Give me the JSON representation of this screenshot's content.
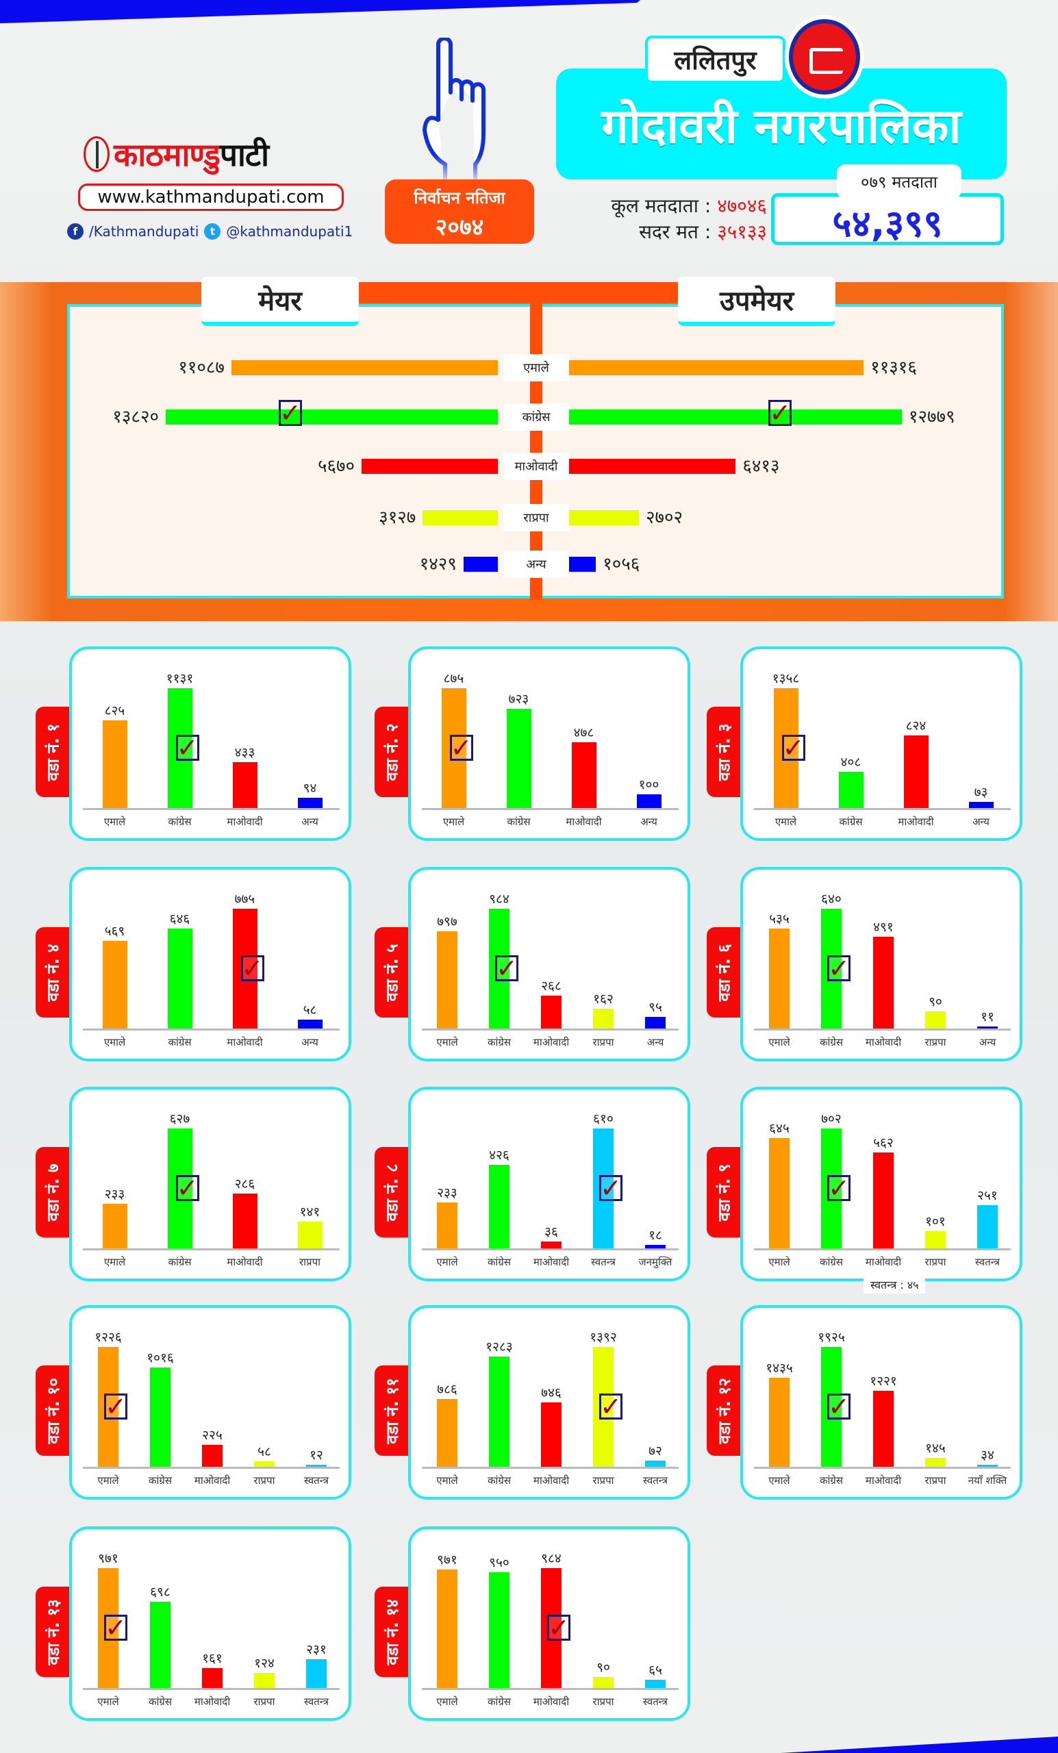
{
  "header": {
    "brand_part1": "काठमाण्डु",
    "brand_part2": "पाटी",
    "website": "www.kathmandupati.com",
    "facebook": "/Kathmandupati",
    "twitter": "@kathmandupati1",
    "result_line1": "निर्वाचन नतिजा",
    "result_line2": "२०७४",
    "district": "ललितपुर",
    "municipality": "गोदावरी नगरपालिका",
    "total_voters_label": "कूल मतदाता :",
    "total_voters": "४७०४६",
    "valid_votes_label": "सदर मत :",
    "valid_votes": "३५१३३",
    "voters_079_label": "०७९ मतदाता",
    "voters_079": "५४,३९९"
  },
  "colors": {
    "एमाले": "#ff9900",
    "कांग्रेस": "#00ff00",
    "माओवादी": "#ff0000",
    "राप्रपा": "#e8ff00",
    "अन्य": "#0000ff",
    "स्वतन्त्र": "#00ccff",
    "जनमुक्ति": "#0000ff",
    "नयाँ शक्ति": "#00ccff",
    "accent": "#00f6ff",
    "band": "#ff4e0a"
  },
  "chart_data": [
    {
      "type": "bar",
      "orientation": "horizontal",
      "title": "मेयर / उपमेयर",
      "categories": [
        "एमाले",
        "कांग्रेस",
        "माओवादी",
        "राप्रपा",
        "अन्य"
      ],
      "series": [
        {
          "name": "मेयर",
          "values": [
            11087,
            13820,
            5670,
            3127,
            1429
          ],
          "labels": [
            "११०८७",
            "१३८२०",
            "५६७०",
            "३१२७",
            "१४२९"
          ],
          "winner": "कांग्रेस"
        },
        {
          "name": "उपमेयर",
          "values": [
            11316,
            12779,
            6413,
            2702,
            1056
          ],
          "labels": [
            "११३१६",
            "१२७७९",
            "६४१३",
            "२७०२",
            "१०५६"
          ],
          "winner": "कांग्रेस"
        }
      ]
    },
    {
      "type": "bar",
      "title": "वडा नं. १",
      "categories": [
        "एमाले",
        "कांग्रेस",
        "माओवादी",
        "अन्य"
      ],
      "values": [
        825,
        1131,
        433,
        94
      ],
      "labels": [
        "८२५",
        "११३१",
        "४३३",
        "९४"
      ],
      "winner": "कांग्रेस"
    },
    {
      "type": "bar",
      "title": "वडा नं. २",
      "categories": [
        "एमाले",
        "कांग्रेस",
        "माओवादी",
        "अन्य"
      ],
      "values": [
        875,
        723,
        478,
        100
      ],
      "labels": [
        "८७५",
        "७२३",
        "४७८",
        "१००"
      ],
      "winner": "एमाले"
    },
    {
      "type": "bar",
      "title": "वडा नं. ३",
      "categories": [
        "एमाले",
        "कांग्रेस",
        "माओवादी",
        "अन्य"
      ],
      "values": [
        1358,
        408,
        824,
        73
      ],
      "labels": [
        "१३५८",
        "४०८",
        "८२४",
        "७३"
      ],
      "winner": "एमाले"
    },
    {
      "type": "bar",
      "title": "वडा नं. ४",
      "categories": [
        "एमाले",
        "कांग्रेस",
        "माओवादी",
        "अन्य"
      ],
      "values": [
        569,
        646,
        775,
        58
      ],
      "labels": [
        "५६९",
        "६४६",
        "७७५",
        "५८"
      ],
      "winner": "माओवादी"
    },
    {
      "type": "bar",
      "title": "वडा नं. ५",
      "categories": [
        "एमाले",
        "कांग्रेस",
        "माओवादी",
        "राप्रपा",
        "अन्य"
      ],
      "values": [
        797,
        984,
        268,
        162,
        95
      ],
      "labels": [
        "७९७",
        "९८४",
        "२६८",
        "१६२",
        "९५"
      ],
      "winner": "कांग्रेस"
    },
    {
      "type": "bar",
      "title": "वडा नं. ६",
      "categories": [
        "एमाले",
        "कांग्रेस",
        "माओवादी",
        "राप्रपा",
        "अन्य"
      ],
      "values": [
        535,
        640,
        491,
        90,
        11
      ],
      "labels": [
        "५३५",
        "६४०",
        "४९१",
        "९०",
        "११"
      ],
      "winner": "कांग्रेस"
    },
    {
      "type": "bar",
      "title": "वडा नं. ७",
      "categories": [
        "एमाले",
        "कांग्रेस",
        "माओवादी",
        "राप्रपा"
      ],
      "values": [
        233,
        627,
        286,
        141
      ],
      "labels": [
        "२३३",
        "६२७",
        "२८६",
        "१४१"
      ],
      "winner": "कांग्रेस"
    },
    {
      "type": "bar",
      "title": "वडा नं. ८",
      "categories": [
        "एमाले",
        "कांग्रेस",
        "माओवादी",
        "स्वतन्त्र",
        "जनमुक्ति"
      ],
      "values": [
        233,
        426,
        36,
        610,
        18
      ],
      "labels": [
        "२३३",
        "४२६",
        "३६",
        "६१०",
        "१८"
      ],
      "winner": "स्वतन्त्र"
    },
    {
      "type": "bar",
      "title": "वडा नं. ९",
      "categories": [
        "एमाले",
        "कांग्रेस",
        "माओवादी",
        "राप्रपा",
        "स्वतन्त्र"
      ],
      "values": [
        645,
        702,
        562,
        101,
        251
      ],
      "labels": [
        "६४५",
        "७०२",
        "५६२",
        "१०१",
        "२५१"
      ],
      "winner": "कांग्रेस",
      "note": "स्वतन्त्र : ४५"
    },
    {
      "type": "bar",
      "title": "वडा नं. १०",
      "categories": [
        "एमाले",
        "कांग्रेस",
        "माओवादी",
        "राप्रपा",
        "स्वतन्त्र"
      ],
      "values": [
        1226,
        1016,
        225,
        58,
        12
      ],
      "labels": [
        "१२२६",
        "१०१६",
        "२२५",
        "५८",
        "१२"
      ],
      "winner": "एमाले"
    },
    {
      "type": "bar",
      "title": "वडा नं. ११",
      "categories": [
        "एमाले",
        "कांग्रेस",
        "माओवादी",
        "राप्रपा",
        "स्वतन्त्र"
      ],
      "values": [
        786,
        1283,
        746,
        1392,
        72
      ],
      "labels": [
        "७८६",
        "१२८३",
        "७४६",
        "१३९२",
        "७२"
      ],
      "winner": "राप्रपा"
    },
    {
      "type": "bar",
      "title": "वडा नं. १२",
      "categories": [
        "एमाले",
        "कांग्रेस",
        "माओवादी",
        "राप्रपा",
        "नयाँ शक्ति"
      ],
      "values": [
        1435,
        1925,
        1221,
        145,
        34
      ],
      "labels": [
        "१४३५",
        "१९२५",
        "१२२१",
        "१४५",
        "३४"
      ],
      "winner": "कांग्रेस"
    },
    {
      "type": "bar",
      "title": "वडा नं. १३",
      "categories": [
        "एमाले",
        "कांग्रेस",
        "माओवादी",
        "राप्रपा",
        "स्वतन्त्र"
      ],
      "values": [
        971,
        698,
        161,
        124,
        231
      ],
      "labels": [
        "९७१",
        "६९८",
        "१६१",
        "१२४",
        "२३१"
      ],
      "winner": "एमाले"
    },
    {
      "type": "bar",
      "title": "वडा नं. १४",
      "categories": [
        "एमाले",
        "कांग्रेस",
        "माओवादी",
        "राप्रपा",
        "स्वतन्त्र"
      ],
      "values": [
        971,
        950,
        984,
        90,
        65
      ],
      "labels": [
        "९७१",
        "९५०",
        "९८४",
        "९०",
        "६५"
      ],
      "winner": "माओवादी"
    }
  ]
}
